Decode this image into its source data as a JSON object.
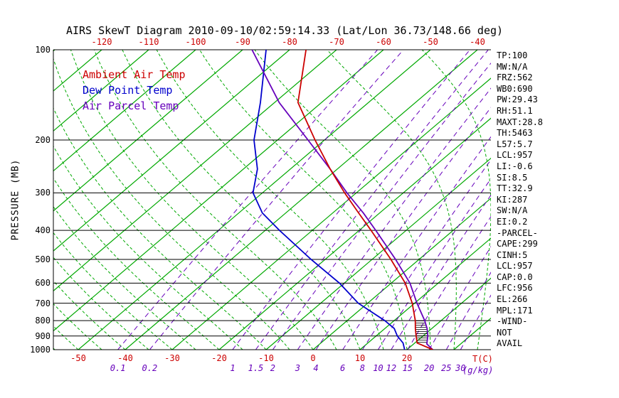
{
  "title": "AIRS SkewT Diagram 2010-09-10/02:59:14.33 (Lat/Lon 36.73/148.66 deg)",
  "y_axis": {
    "label": "PRESSURE (MB)",
    "ticks": [
      100,
      200,
      300,
      400,
      500,
      600,
      700,
      800,
      900,
      1000
    ]
  },
  "top_axis": {
    "ticks": [
      -120,
      -110,
      -100,
      -90,
      -80,
      -70,
      -60,
      -50,
      -40
    ]
  },
  "bottom_axis": {
    "temp_ticks": [
      -50,
      -40,
      -30,
      -20,
      -10,
      0,
      10,
      20
    ],
    "temp_unit": "T(C)",
    "mixing_ticks": [
      0.1,
      0.2,
      1,
      1.5,
      2,
      3,
      4,
      6,
      8,
      10,
      12,
      15,
      20,
      25,
      30
    ],
    "mixing_unit": "(g/kg)"
  },
  "legend": [
    {
      "label": "Ambient Air Temp",
      "color": "#cc0000"
    },
    {
      "label": "Dew Point Temp",
      "color": "#0000cc"
    },
    {
      "label": "Air Parcel Temp",
      "color": "#6600bb"
    }
  ],
  "stats_panel": [
    "TP:100",
    "MW:N/A",
    "FRZ:562",
    "WB0:690",
    "PW:29.43",
    "RH:51.1",
    "MAXT:28.8",
    "TH:5463",
    "L57:5.7",
    "LCL:957",
    "LI:-0.6",
    "SI:8.5",
    "TT:32.9",
    "KI:287",
    "SW:N/A",
    "EI:0.2",
    "-PARCEL-",
    "CAPE:299",
    "CINH:5",
    "LCL:957",
    "CAP:0.0",
    "LFC:956",
    "EL:266",
    "MPL:171",
    "-WIND-",
    "NOT",
    "AVAIL"
  ],
  "colors": {
    "ambient": "#cc0000",
    "dewpoint": "#0000cc",
    "parcel": "#6600bb",
    "isotherm": "#00a800",
    "moist_adiabat": "#00a800",
    "mixing_ratio": "#6600bb",
    "axis": "#000000"
  },
  "chart_data": {
    "type": "line",
    "subtype": "skewt-logp",
    "title": "AIRS SkewT Diagram 2010-09-10/02:59:14.33 (Lat/Lon 36.73/148.66 deg)",
    "ylabel": "PRESSURE (MB)",
    "xlabel": "T(C)",
    "pressure_range_mb": [
      100,
      1000
    ],
    "pressure_ticks_mb": [
      100,
      200,
      300,
      400,
      500,
      600,
      700,
      800,
      900,
      1000
    ],
    "top_temp_ticks_c": [
      -120,
      -110,
      -100,
      -90,
      -80,
      -70,
      -60,
      -50,
      -40
    ],
    "bottom_temp_ticks_c": [
      -50,
      -40,
      -30,
      -20,
      -10,
      0,
      10,
      20
    ],
    "isotherms_c": {
      "min": -140,
      "max": 40,
      "step": 10
    },
    "moist_adiabats_c": {
      "min": -70,
      "max": 45,
      "step": 5
    },
    "mixing_ratio_lines_gkg": [
      0.1,
      0.2,
      1,
      1.5,
      2,
      3,
      4,
      6,
      8,
      10,
      12,
      15,
      20,
      25,
      30
    ],
    "grid": "horizontal pressure lines black; isotherms solid green; moist adiabats dashed green; mixing-ratio lines dashed purple",
    "legend_position": "upper-left inside plot",
    "cape_hatch_between_mb": [
      957,
      790
    ],
    "series": [
      {
        "name": "Ambient Air Temp",
        "color": "#cc0000",
        "pressure_mb": [
          1000,
          950,
          900,
          850,
          800,
          700,
          600,
          500,
          400,
          350,
          300,
          250,
          200,
          150,
          100
        ],
        "temp_c": [
          25.5,
          20.5,
          18.5,
          16.5,
          14.5,
          9.5,
          3,
          -6,
          -17.5,
          -24.5,
          -32.5,
          -41.5,
          -52,
          -65,
          -76.5
        ]
      },
      {
        "name": "Dew Point Temp",
        "color": "#0000cc",
        "pressure_mb": [
          1000,
          950,
          900,
          850,
          800,
          700,
          600,
          500,
          400,
          350,
          300,
          250,
          200,
          150,
          100
        ],
        "temp_c": [
          19.5,
          17.5,
          14.5,
          12,
          8,
          -2,
          -11,
          -23,
          -37,
          -45,
          -52,
          -57,
          -65,
          -73,
          -85
        ]
      },
      {
        "name": "Air Parcel Temp",
        "color": "#6600bb",
        "pressure_mb": [
          1000,
          957,
          900,
          850,
          800,
          700,
          600,
          500,
          400,
          350,
          300,
          250,
          200,
          150,
          100
        ],
        "temp_c": [
          25.5,
          22.8,
          21,
          19,
          16.5,
          10.5,
          4,
          -5,
          -16.5,
          -23.5,
          -32,
          -41.5,
          -53.5,
          -69,
          -88
        ]
      }
    ]
  }
}
